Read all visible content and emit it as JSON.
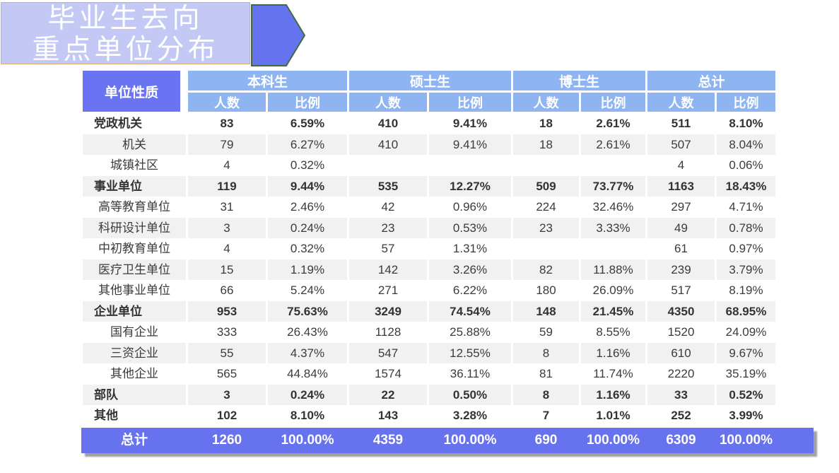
{
  "slide": {
    "title_line1": "毕业生去向",
    "title_line2": "重点单位分布"
  },
  "colors": {
    "banner_bg": "#c3c9f4",
    "banner_border": "#ddab72",
    "arrow_fill": "#6673ee",
    "arrow_stroke": "#3f6c3f",
    "header_dark": "#6a74f2",
    "header_light": "#8eb5f1",
    "stripe": "#f1f1f1",
    "total_bg": "#6672ee",
    "text": "#3b3b3b"
  },
  "table": {
    "corner_header": "单位性质",
    "group_headers": [
      "本科生",
      "硕士生",
      "博士生",
      "总计"
    ],
    "sub_headers": [
      "人数",
      "比例"
    ],
    "rows": [
      {
        "label": "党政机关",
        "type": "category",
        "shaded": false,
        "values": [
          "83",
          "6.59%",
          "410",
          "9.41%",
          "18",
          "2.61%",
          "511",
          "8.10%"
        ]
      },
      {
        "label": "机关",
        "type": "sub",
        "shaded": true,
        "values": [
          "79",
          "6.27%",
          "410",
          "9.41%",
          "18",
          "2.61%",
          "507",
          "8.04%"
        ]
      },
      {
        "label": "城镇社区",
        "type": "sub",
        "shaded": false,
        "values": [
          "4",
          "0.32%",
          "",
          "",
          "",
          "",
          "4",
          "0.06%"
        ]
      },
      {
        "label": "事业单位",
        "type": "category",
        "shaded": true,
        "values": [
          "119",
          "9.44%",
          "535",
          "12.27%",
          "509",
          "73.77%",
          "1163",
          "18.43%"
        ]
      },
      {
        "label": "高等教育单位",
        "type": "sub",
        "shaded": false,
        "values": [
          "31",
          "2.46%",
          "42",
          "0.96%",
          "224",
          "32.46%",
          "297",
          "4.71%"
        ]
      },
      {
        "label": "科研设计单位",
        "type": "sub",
        "shaded": true,
        "values": [
          "3",
          "0.24%",
          "23",
          "0.53%",
          "23",
          "3.33%",
          "49",
          "0.78%"
        ]
      },
      {
        "label": "中初教育单位",
        "type": "sub",
        "shaded": false,
        "values": [
          "4",
          "0.32%",
          "57",
          "1.31%",
          "",
          "",
          "61",
          "0.97%"
        ]
      },
      {
        "label": "医疗卫生单位",
        "type": "sub",
        "shaded": true,
        "values": [
          "15",
          "1.19%",
          "142",
          "3.26%",
          "82",
          "11.88%",
          "239",
          "3.79%"
        ]
      },
      {
        "label": "其他事业单位",
        "type": "sub",
        "shaded": false,
        "values": [
          "66",
          "5.24%",
          "271",
          "6.22%",
          "180",
          "26.09%",
          "517",
          "8.19%"
        ]
      },
      {
        "label": "企业单位",
        "type": "category",
        "shaded": true,
        "values": [
          "953",
          "75.63%",
          "3249",
          "74.54%",
          "148",
          "21.45%",
          "4350",
          "68.95%"
        ]
      },
      {
        "label": "国有企业",
        "type": "sub",
        "shaded": false,
        "values": [
          "333",
          "26.43%",
          "1128",
          "25.88%",
          "59",
          "8.55%",
          "1520",
          "24.09%"
        ]
      },
      {
        "label": "三资企业",
        "type": "sub",
        "shaded": true,
        "values": [
          "55",
          "4.37%",
          "547",
          "12.55%",
          "8",
          "1.16%",
          "610",
          "9.67%"
        ]
      },
      {
        "label": "其他企业",
        "type": "sub",
        "shaded": false,
        "values": [
          "565",
          "44.84%",
          "1574",
          "36.11%",
          "81",
          "11.74%",
          "2220",
          "35.19%"
        ]
      },
      {
        "label": "部队",
        "type": "category",
        "shaded": true,
        "values": [
          "3",
          "0.24%",
          "22",
          "0.50%",
          "8",
          "1.16%",
          "33",
          "0.52%"
        ]
      },
      {
        "label": "其他",
        "type": "category",
        "shaded": false,
        "values": [
          "102",
          "8.10%",
          "143",
          "3.28%",
          "7",
          "1.01%",
          "252",
          "3.99%"
        ]
      }
    ],
    "total_row": {
      "label": "总计",
      "values": [
        "1260",
        "100.00%",
        "4359",
        "100.00%",
        "690",
        "100.00%",
        "6309",
        "100.00%"
      ]
    }
  }
}
